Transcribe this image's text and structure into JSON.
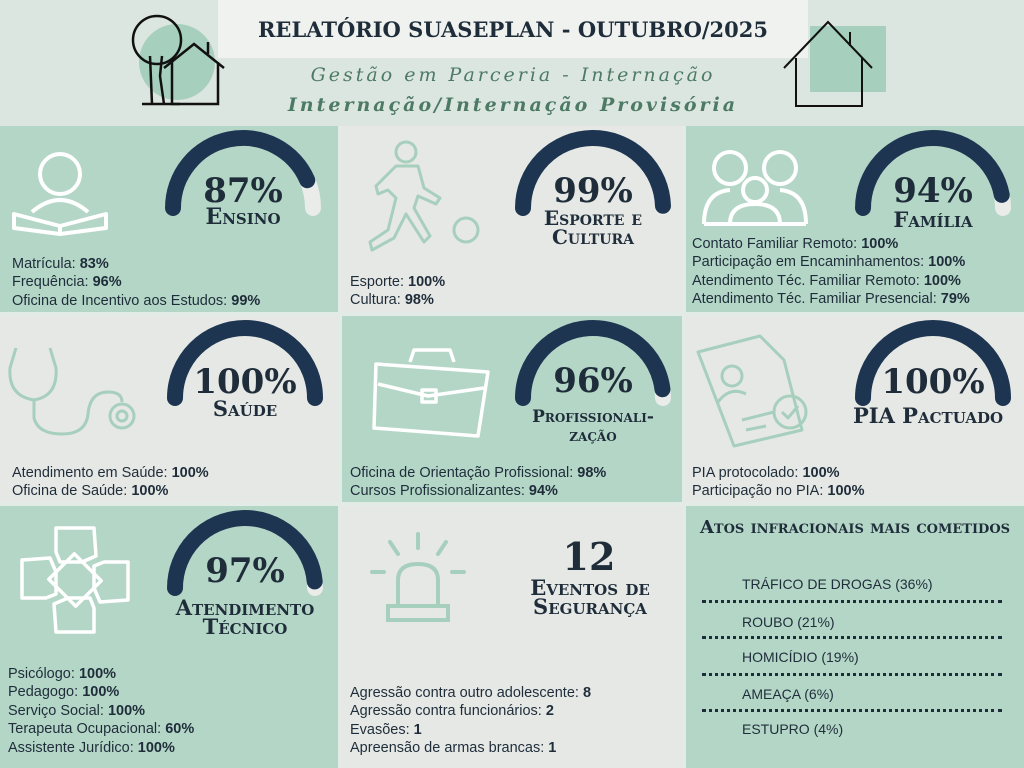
{
  "header": {
    "title": "RELATÓRIO SUASEPLAN - OUTUBRO/2025",
    "subtitle": "Gestão em Parceria - Internação",
    "subtitle2": "Internação/Internação Provisória"
  },
  "cards": {
    "ensino": {
      "icon": "reading-person-icon",
      "value": 87,
      "percent": "87%",
      "label": [
        "Ensino"
      ],
      "stats": [
        {
          "name": "Matrícula: ",
          "value": "83%"
        },
        {
          "name": "Frequência: ",
          "value": "96%"
        },
        {
          "name": "Oficina de Incentivo aos Estudos: ",
          "value": "99%"
        }
      ]
    },
    "esporte": {
      "icon": "soccer-player-icon",
      "value": 99,
      "percent": "99%",
      "label": [
        "Esporte e",
        "Cultura"
      ],
      "stats": [
        {
          "name": "Esporte: ",
          "value": "100%"
        },
        {
          "name": "Cultura: ",
          "value": "98%"
        }
      ]
    },
    "familia": {
      "icon": "family-icon",
      "value": 94,
      "percent": "94%",
      "label": [
        "Família"
      ],
      "stats": [
        {
          "name": "Contato Familiar Remoto: ",
          "value": "100%"
        },
        {
          "name": "Participação em Encaminhamentos: ",
          "value": "100%"
        },
        {
          "name": "Atendimento Téc. Familiar Remoto: ",
          "value": "100%"
        },
        {
          "name": "Atendimento Téc. Familiar Presencial: ",
          "value": "79%"
        }
      ]
    },
    "saude": {
      "icon": "stethoscope-icon",
      "value": 100,
      "percent": "100%",
      "label": [
        "Saúde"
      ],
      "stats": [
        {
          "name": "Atendimento em Saúde: ",
          "value": "100%"
        },
        {
          "name": "Oficina de Saúde: ",
          "value": "100%"
        }
      ]
    },
    "profissionalizacao": {
      "icon": "briefcase-icon",
      "value": 96,
      "percent": "96%",
      "label": [
        "Profissionali-",
        "zação"
      ],
      "stats": [
        {
          "name": "Oficina de Orientação Profissional: ",
          "value": "98%"
        },
        {
          "name": "Cursos Profissionalizantes: ",
          "value": "94%"
        }
      ]
    },
    "pia": {
      "icon": "document-check-icon",
      "value": 100,
      "percent": "100%",
      "label": [
        "PIA Pactuado"
      ],
      "stats": [
        {
          "name": "PIA protocolado: ",
          "value": "100%"
        },
        {
          "name": "Participação no PIA: ",
          "value": "100%"
        }
      ]
    },
    "atendimento": {
      "icon": "joined-hands-icon",
      "value": 97,
      "percent": "97%",
      "label": [
        "Atendimento",
        "Técnico"
      ],
      "stats": [
        {
          "name": "Psicólogo: ",
          "value": "100%"
        },
        {
          "name": "Pedagogo: ",
          "value": "100%"
        },
        {
          "name": "Serviço Social: ",
          "value": "100%"
        },
        {
          "name": "Terapeuta Ocupacional: ",
          "value": "60%"
        },
        {
          "name": "Assistente Jurídico: ",
          "value": "100%"
        }
      ]
    },
    "seguranca": {
      "icon": "siren-icon",
      "count": "12",
      "label": [
        "Eventos de",
        "Segurança"
      ],
      "stats": [
        {
          "name": "Agressão contra outro adolescente: ",
          "value": "8"
        },
        {
          "name": "Agressão contra funcionários: ",
          "value": "2"
        },
        {
          "name": "Evasões: ",
          "value": "1"
        },
        {
          "name": "Apreensão de armas brancas: ",
          "value": "1"
        }
      ]
    }
  },
  "atos": {
    "title": "Atos infracionais mais cometidos",
    "items": [
      "TRÁFICO DE DROGAS (36%)",
      "ROUBO (21%)",
      "HOMICÍDIO (19%)",
      "AMEAÇA (6%)",
      "ESTUPRO (4%)"
    ]
  },
  "colors": {
    "navy": "#1f2d3a",
    "arc_dark": "#1d3550",
    "arc_bg": "#e9ece9",
    "green": "#b4d6c7",
    "grey": "#e6e8e5",
    "icon_green": "#9fc9b4"
  }
}
